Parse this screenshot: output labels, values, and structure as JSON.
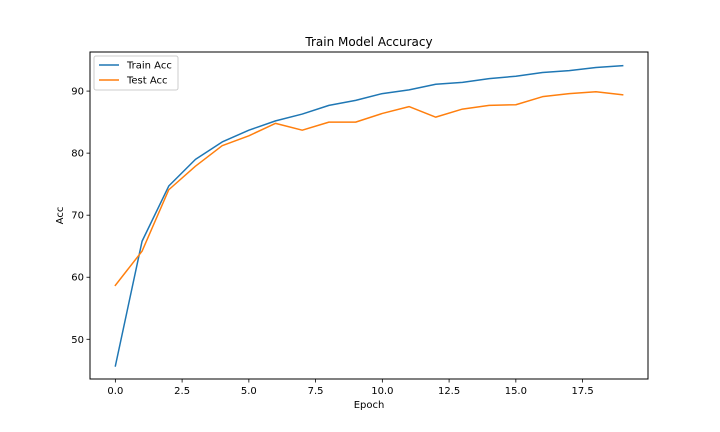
{
  "chart_data": {
    "type": "line",
    "title": "Train Model Accuracy",
    "xlabel": "Epoch",
    "ylabel": "Acc",
    "xlim": [
      -0.95,
      19.95
    ],
    "ylim": [
      43.6,
      96.3
    ],
    "xticks": [
      0.0,
      2.5,
      5.0,
      7.5,
      10.0,
      12.5,
      15.0,
      17.5
    ],
    "xtick_labels": [
      "0.0",
      "2.5",
      "5.0",
      "7.5",
      "10.0",
      "12.5",
      "15.0",
      "17.5"
    ],
    "yticks": [
      50,
      60,
      70,
      80,
      90
    ],
    "ytick_labels": [
      "50",
      "60",
      "70",
      "80",
      "90"
    ],
    "grid": false,
    "legend_position": "top-left",
    "x": [
      0,
      1,
      2,
      3,
      4,
      5,
      6,
      7,
      8,
      9,
      10,
      11,
      12,
      13,
      14,
      15,
      16,
      17,
      18,
      19
    ],
    "series": [
      {
        "name": "Train Acc",
        "color": "#1f77b4",
        "values": [
          45.7,
          65.8,
          74.7,
          79.0,
          81.8,
          83.7,
          85.2,
          86.3,
          87.7,
          88.5,
          89.6,
          90.2,
          91.1,
          91.4,
          92.0,
          92.4,
          93.0,
          93.3,
          93.8,
          94.1
        ]
      },
      {
        "name": "Test Acc",
        "color": "#ff7f0e",
        "values": [
          58.7,
          64.2,
          74.1,
          77.9,
          81.2,
          82.8,
          84.8,
          83.7,
          85.0,
          85.0,
          86.4,
          87.5,
          85.8,
          87.1,
          87.7,
          87.8,
          89.1,
          89.6,
          89.9,
          89.4
        ]
      }
    ]
  }
}
